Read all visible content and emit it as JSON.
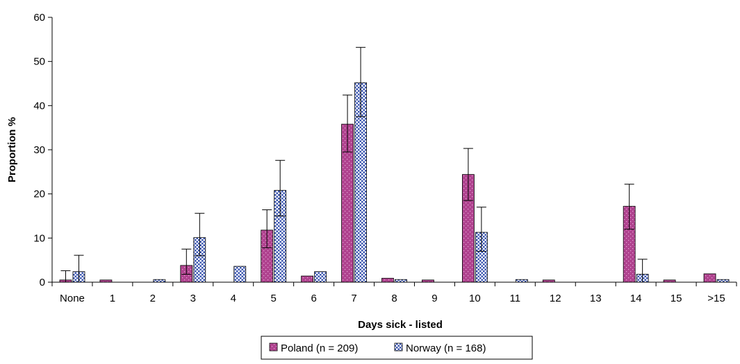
{
  "chart_data": {
    "type": "bar",
    "title": "",
    "xlabel": "Days sick - listed",
    "ylabel": "Proportion %",
    "ylim": [
      0,
      60
    ],
    "yticks": [
      0,
      10,
      20,
      30,
      40,
      50,
      60
    ],
    "grid": false,
    "legend_position": "bottom",
    "categories": [
      "None",
      "1",
      "2",
      "3",
      "4",
      "5",
      "6",
      "7",
      "8",
      "9",
      "10",
      "11",
      "12",
      "13",
      "14",
      "15",
      ">15"
    ],
    "series": [
      {
        "name": "Poland (n = 209)",
        "color": "#b0438f",
        "pattern": "dotted-magenta",
        "values": [
          0.5,
          0.5,
          0,
          3.8,
          0,
          11.8,
          1.4,
          35.8,
          0.9,
          0.5,
          24.4,
          0,
          0.5,
          0,
          17.2,
          0.5,
          1.9
        ],
        "error_low": [
          0,
          0,
          0,
          1.8,
          0,
          7.8,
          0,
          29.5,
          0,
          0,
          18.5,
          0,
          0,
          0,
          12.0,
          0,
          0
        ],
        "error_high": [
          2.6,
          0,
          0,
          7.5,
          0,
          16.4,
          0,
          42.4,
          0,
          0,
          30.3,
          0,
          0,
          0,
          22.2,
          0,
          0
        ]
      },
      {
        "name": "Norway  (n = 168)",
        "color": "#4a63b5",
        "pattern": "checker-blue",
        "values": [
          2.4,
          0,
          0.6,
          10.1,
          3.6,
          20.8,
          2.4,
          45.2,
          0.6,
          0,
          11.3,
          0.6,
          0,
          0,
          1.8,
          0,
          0.6
        ],
        "error_low": [
          0,
          0,
          0,
          6.0,
          0,
          15.0,
          0,
          37.5,
          0,
          0,
          7.0,
          0,
          0,
          0,
          0,
          0,
          0
        ],
        "error_high": [
          6.1,
          0,
          0,
          15.6,
          0,
          27.6,
          0,
          53.2,
          0,
          0,
          17.0,
          0,
          0,
          0,
          5.2,
          0,
          0
        ]
      }
    ]
  }
}
